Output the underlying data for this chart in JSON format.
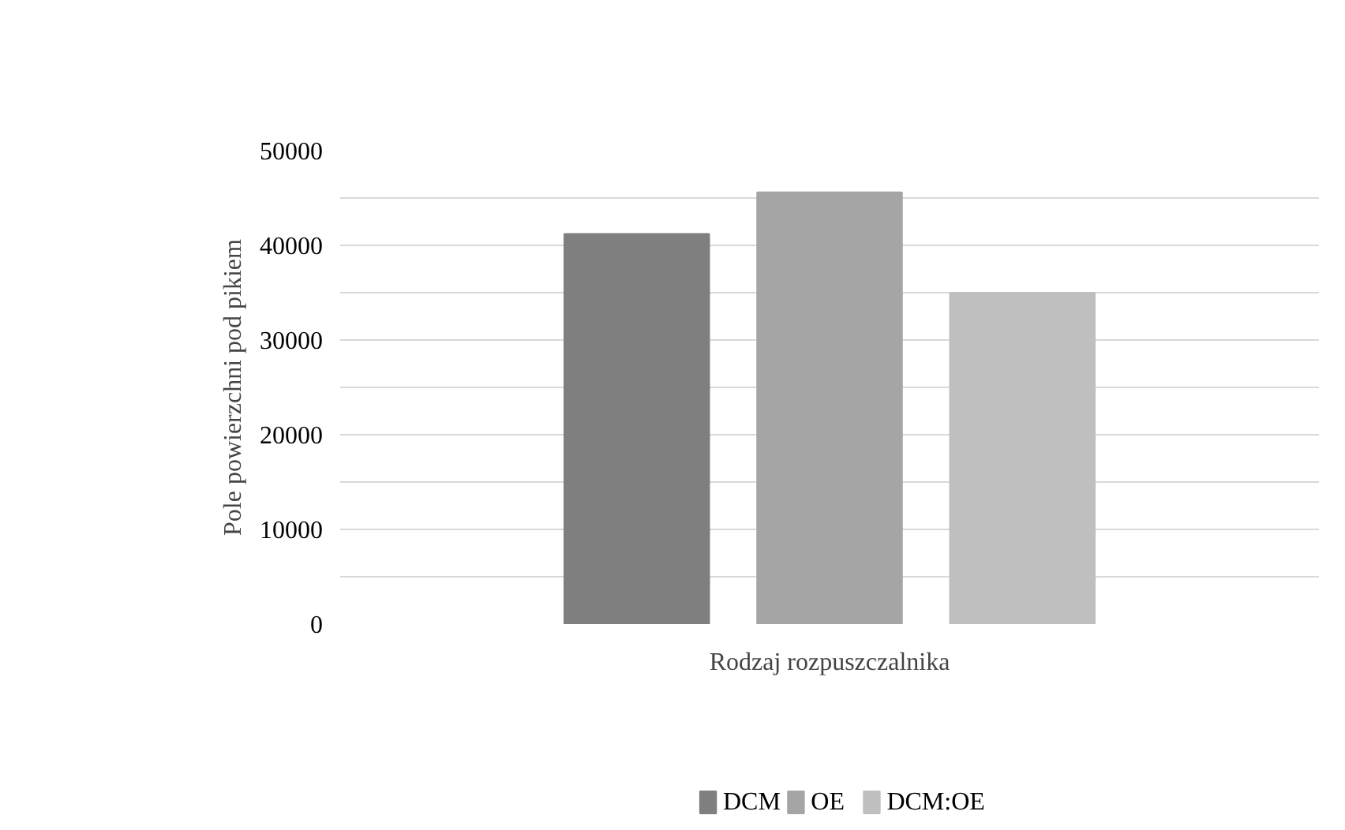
{
  "chart_data": {
    "type": "bar",
    "categories": [
      null
    ],
    "xlabel": "Rodzaj rozpuszczalnika",
    "ylabel": "Pole powierzchni pod pikiem",
    "series": [
      {
        "name": "DCM",
        "color": "#7f7f7f",
        "values": [
          41200
        ]
      },
      {
        "name": "OE",
        "color": "#a5a5a5",
        "values": [
          45600
        ]
      },
      {
        "name": "DCM:OE",
        "color": "#bfbfbf",
        "values": [
          35000
        ]
      }
    ],
    "ylim": [
      0,
      50000
    ],
    "yticks": [
      0,
      {
        "value": 5000,
        "label": null
      },
      10000,
      {
        "value": 15000,
        "label": null
      },
      20000,
      {
        "value": 25000,
        "label": null
      },
      30000,
      {
        "value": 35000,
        "label": null
      },
      40000,
      {
        "value": 45000,
        "label": null
      },
      50000
    ],
    "grid": "y",
    "legend": "bottom"
  }
}
